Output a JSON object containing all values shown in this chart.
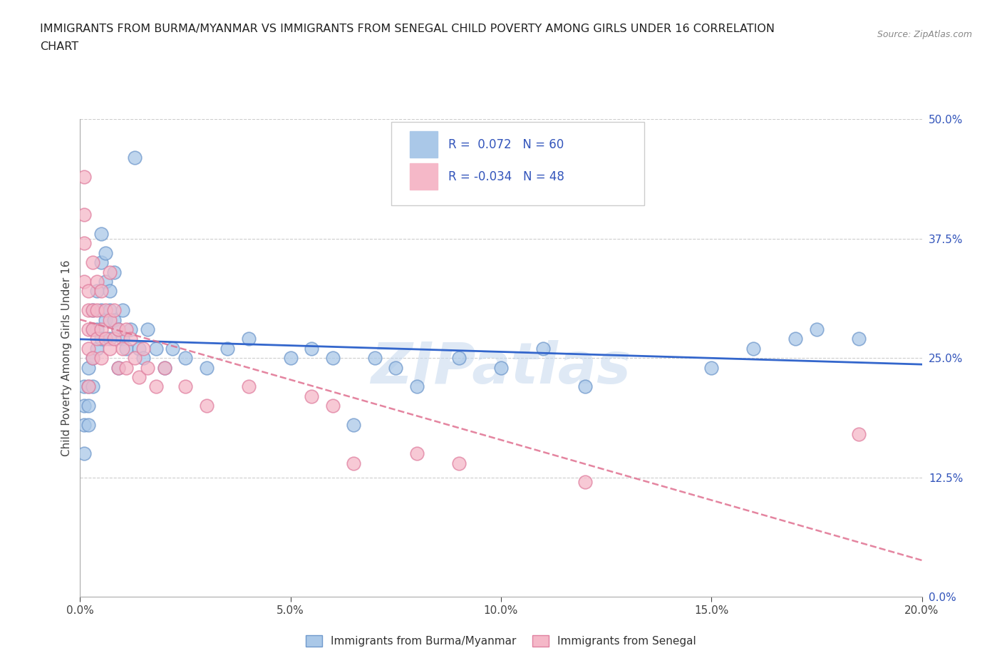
{
  "title_line1": "IMMIGRANTS FROM BURMA/MYANMAR VS IMMIGRANTS FROM SENEGAL CHILD POVERTY AMONG GIRLS UNDER 16 CORRELATION",
  "title_line2": "CHART",
  "source": "Source: ZipAtlas.com",
  "ylabel": "Child Poverty Among Girls Under 16",
  "xlim": [
    0.0,
    0.2
  ],
  "ylim": [
    0.0,
    0.5
  ],
  "xticks": [
    0.0,
    0.05,
    0.1,
    0.15,
    0.2
  ],
  "xticklabels": [
    "0.0%",
    "5.0%",
    "10.0%",
    "15.0%",
    "20.0%"
  ],
  "yticks": [
    0.0,
    0.125,
    0.25,
    0.375,
    0.5
  ],
  "yticklabels": [
    "0.0%",
    "12.5%",
    "25.0%",
    "37.5%",
    "50.0%"
  ],
  "series1_label": "Immigrants from Burma/Myanmar",
  "series2_label": "Immigrants from Senegal",
  "series1_color": "#aac8e8",
  "series2_color": "#f5b8c8",
  "series1_edge": "#7099cc",
  "series2_edge": "#e080a0",
  "trend1_color": "#3366cc",
  "trend2_color": "#e07090",
  "R1": 0.072,
  "N1": 60,
  "R2": -0.034,
  "N2": 48,
  "legend_text_color": "#3355bb",
  "watermark": "ZIPatlas",
  "series1_x": [
    0.001,
    0.001,
    0.001,
    0.001,
    0.002,
    0.002,
    0.002,
    0.002,
    0.003,
    0.003,
    0.003,
    0.003,
    0.004,
    0.004,
    0.004,
    0.005,
    0.005,
    0.005,
    0.005,
    0.006,
    0.006,
    0.006,
    0.007,
    0.007,
    0.007,
    0.008,
    0.008,
    0.009,
    0.009,
    0.01,
    0.01,
    0.011,
    0.012,
    0.013,
    0.014,
    0.015,
    0.016,
    0.018,
    0.02,
    0.022,
    0.025,
    0.03,
    0.035,
    0.04,
    0.05,
    0.055,
    0.06,
    0.065,
    0.07,
    0.075,
    0.08,
    0.09,
    0.1,
    0.11,
    0.12,
    0.15,
    0.16,
    0.17,
    0.175,
    0.185
  ],
  "series1_y": [
    0.2,
    0.22,
    0.18,
    0.15,
    0.22,
    0.2,
    0.24,
    0.18,
    0.3,
    0.28,
    0.25,
    0.22,
    0.32,
    0.28,
    0.26,
    0.38,
    0.35,
    0.3,
    0.27,
    0.36,
    0.33,
    0.29,
    0.32,
    0.3,
    0.27,
    0.34,
    0.29,
    0.28,
    0.24,
    0.3,
    0.27,
    0.26,
    0.28,
    0.46,
    0.26,
    0.25,
    0.28,
    0.26,
    0.24,
    0.26,
    0.25,
    0.24,
    0.26,
    0.27,
    0.25,
    0.26,
    0.25,
    0.18,
    0.25,
    0.24,
    0.22,
    0.25,
    0.24,
    0.26,
    0.22,
    0.24,
    0.26,
    0.27,
    0.28,
    0.27
  ],
  "series2_x": [
    0.001,
    0.001,
    0.001,
    0.001,
    0.002,
    0.002,
    0.002,
    0.002,
    0.002,
    0.003,
    0.003,
    0.003,
    0.003,
    0.004,
    0.004,
    0.004,
    0.005,
    0.005,
    0.005,
    0.006,
    0.006,
    0.007,
    0.007,
    0.007,
    0.008,
    0.008,
    0.009,
    0.009,
    0.01,
    0.011,
    0.011,
    0.012,
    0.013,
    0.014,
    0.015,
    0.016,
    0.018,
    0.02,
    0.025,
    0.03,
    0.04,
    0.055,
    0.06,
    0.065,
    0.08,
    0.09,
    0.12,
    0.185
  ],
  "series2_y": [
    0.44,
    0.4,
    0.37,
    0.33,
    0.32,
    0.3,
    0.28,
    0.26,
    0.22,
    0.35,
    0.3,
    0.28,
    0.25,
    0.33,
    0.3,
    0.27,
    0.32,
    0.28,
    0.25,
    0.3,
    0.27,
    0.34,
    0.29,
    0.26,
    0.3,
    0.27,
    0.28,
    0.24,
    0.26,
    0.28,
    0.24,
    0.27,
    0.25,
    0.23,
    0.26,
    0.24,
    0.22,
    0.24,
    0.22,
    0.2,
    0.22,
    0.21,
    0.2,
    0.14,
    0.15,
    0.14,
    0.12,
    0.17
  ]
}
